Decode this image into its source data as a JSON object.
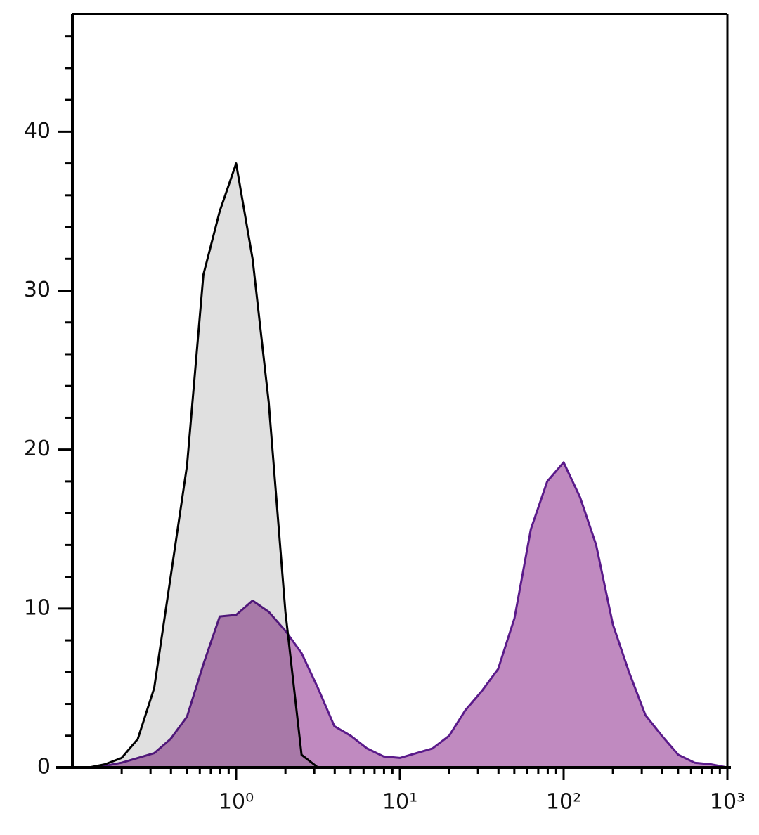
{
  "chart_data": {
    "type": "histogram-overlay",
    "x_scale": "log",
    "xlim": [
      0.1,
      1000
    ],
    "ylim": [
      0,
      47.4
    ],
    "xticks": [
      {
        "value": 1,
        "label": "10⁰"
      },
      {
        "value": 10,
        "label": "10¹"
      },
      {
        "value": 100,
        "label": "10²"
      },
      {
        "value": 1000,
        "label": "10³"
      }
    ],
    "x_minor_ticks": [
      0.2,
      0.3,
      0.4,
      0.5,
      0.6,
      0.7,
      0.8,
      0.9,
      2,
      3,
      4,
      5,
      6,
      7,
      8,
      9,
      20,
      30,
      40,
      50,
      60,
      70,
      80,
      90,
      200,
      300,
      400,
      500,
      600,
      700,
      800,
      900
    ],
    "yticks": [
      0,
      10,
      20,
      30,
      40
    ],
    "y_minor_ticks": [
      2,
      4,
      6,
      8,
      12,
      14,
      16,
      18,
      22,
      24,
      26,
      28,
      32,
      34,
      36,
      38,
      42,
      44,
      46
    ],
    "x": [
      0.1,
      0.126,
      0.158,
      0.2,
      0.251,
      0.316,
      0.398,
      0.501,
      0.631,
      0.794,
      1,
      1.26,
      1.58,
      2,
      2.51,
      3.16,
      3.98,
      5.01,
      6.31,
      7.94,
      10,
      12.6,
      15.8,
      20,
      25.1,
      31.6,
      39.8,
      50.1,
      63.1,
      79.4,
      100,
      126,
      158,
      200,
      251,
      316,
      398,
      501,
      631,
      794,
      1000
    ],
    "series": [
      {
        "color": "#000000",
        "fill": "#e0e0e0",
        "values": [
          0,
          0,
          0.2,
          0.6,
          1.8,
          5,
          12,
          19,
          31,
          35,
          38,
          32,
          23,
          9.8,
          0.8,
          0,
          0,
          0,
          0,
          0,
          0,
          0,
          0,
          0,
          0,
          0,
          0,
          0,
          0,
          0,
          0,
          0,
          0,
          0,
          0,
          0,
          0,
          0,
          0,
          0,
          0
        ]
      },
      {
        "color": "#5a1a8a",
        "fill": "#c08ac0",
        "values": [
          0,
          0,
          0.1,
          0.3,
          0.6,
          0.9,
          1.8,
          3.2,
          6.5,
          9.5,
          9.6,
          10.5,
          9.8,
          8.6,
          7.2,
          5,
          2.6,
          2,
          1.2,
          0.7,
          0.6,
          0.9,
          1.2,
          2,
          3.6,
          4.8,
          6.2,
          9.4,
          15,
          18,
          19.2,
          17,
          14,
          9,
          6,
          3.3,
          2,
          0.8,
          0.3,
          0.2,
          0
        ]
      }
    ]
  }
}
